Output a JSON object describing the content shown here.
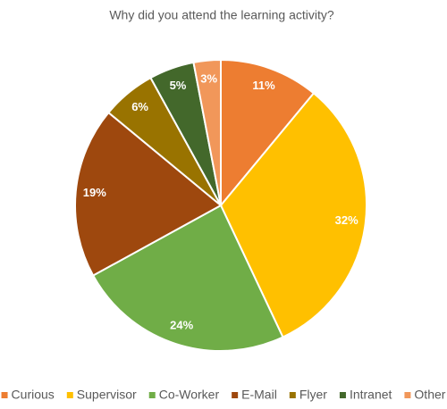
{
  "chart_data": {
    "type": "pie",
    "title": "Why did you attend the learning activity?",
    "categories": [
      "Curious",
      "Supervisor",
      "Co-Worker",
      "E-Mail",
      "Flyer",
      "Intranet",
      "Other"
    ],
    "values": [
      11,
      32,
      24,
      19,
      6,
      5,
      3
    ],
    "value_labels": [
      "11%",
      "32%",
      "24%",
      "19%",
      "6%",
      "5%",
      "3%"
    ],
    "colors": [
      "#ED7D31",
      "#FFC000",
      "#70AD47",
      "#9E480E",
      "#997300",
      "#43682B",
      "#F1975A"
    ],
    "legend": "bottom"
  }
}
